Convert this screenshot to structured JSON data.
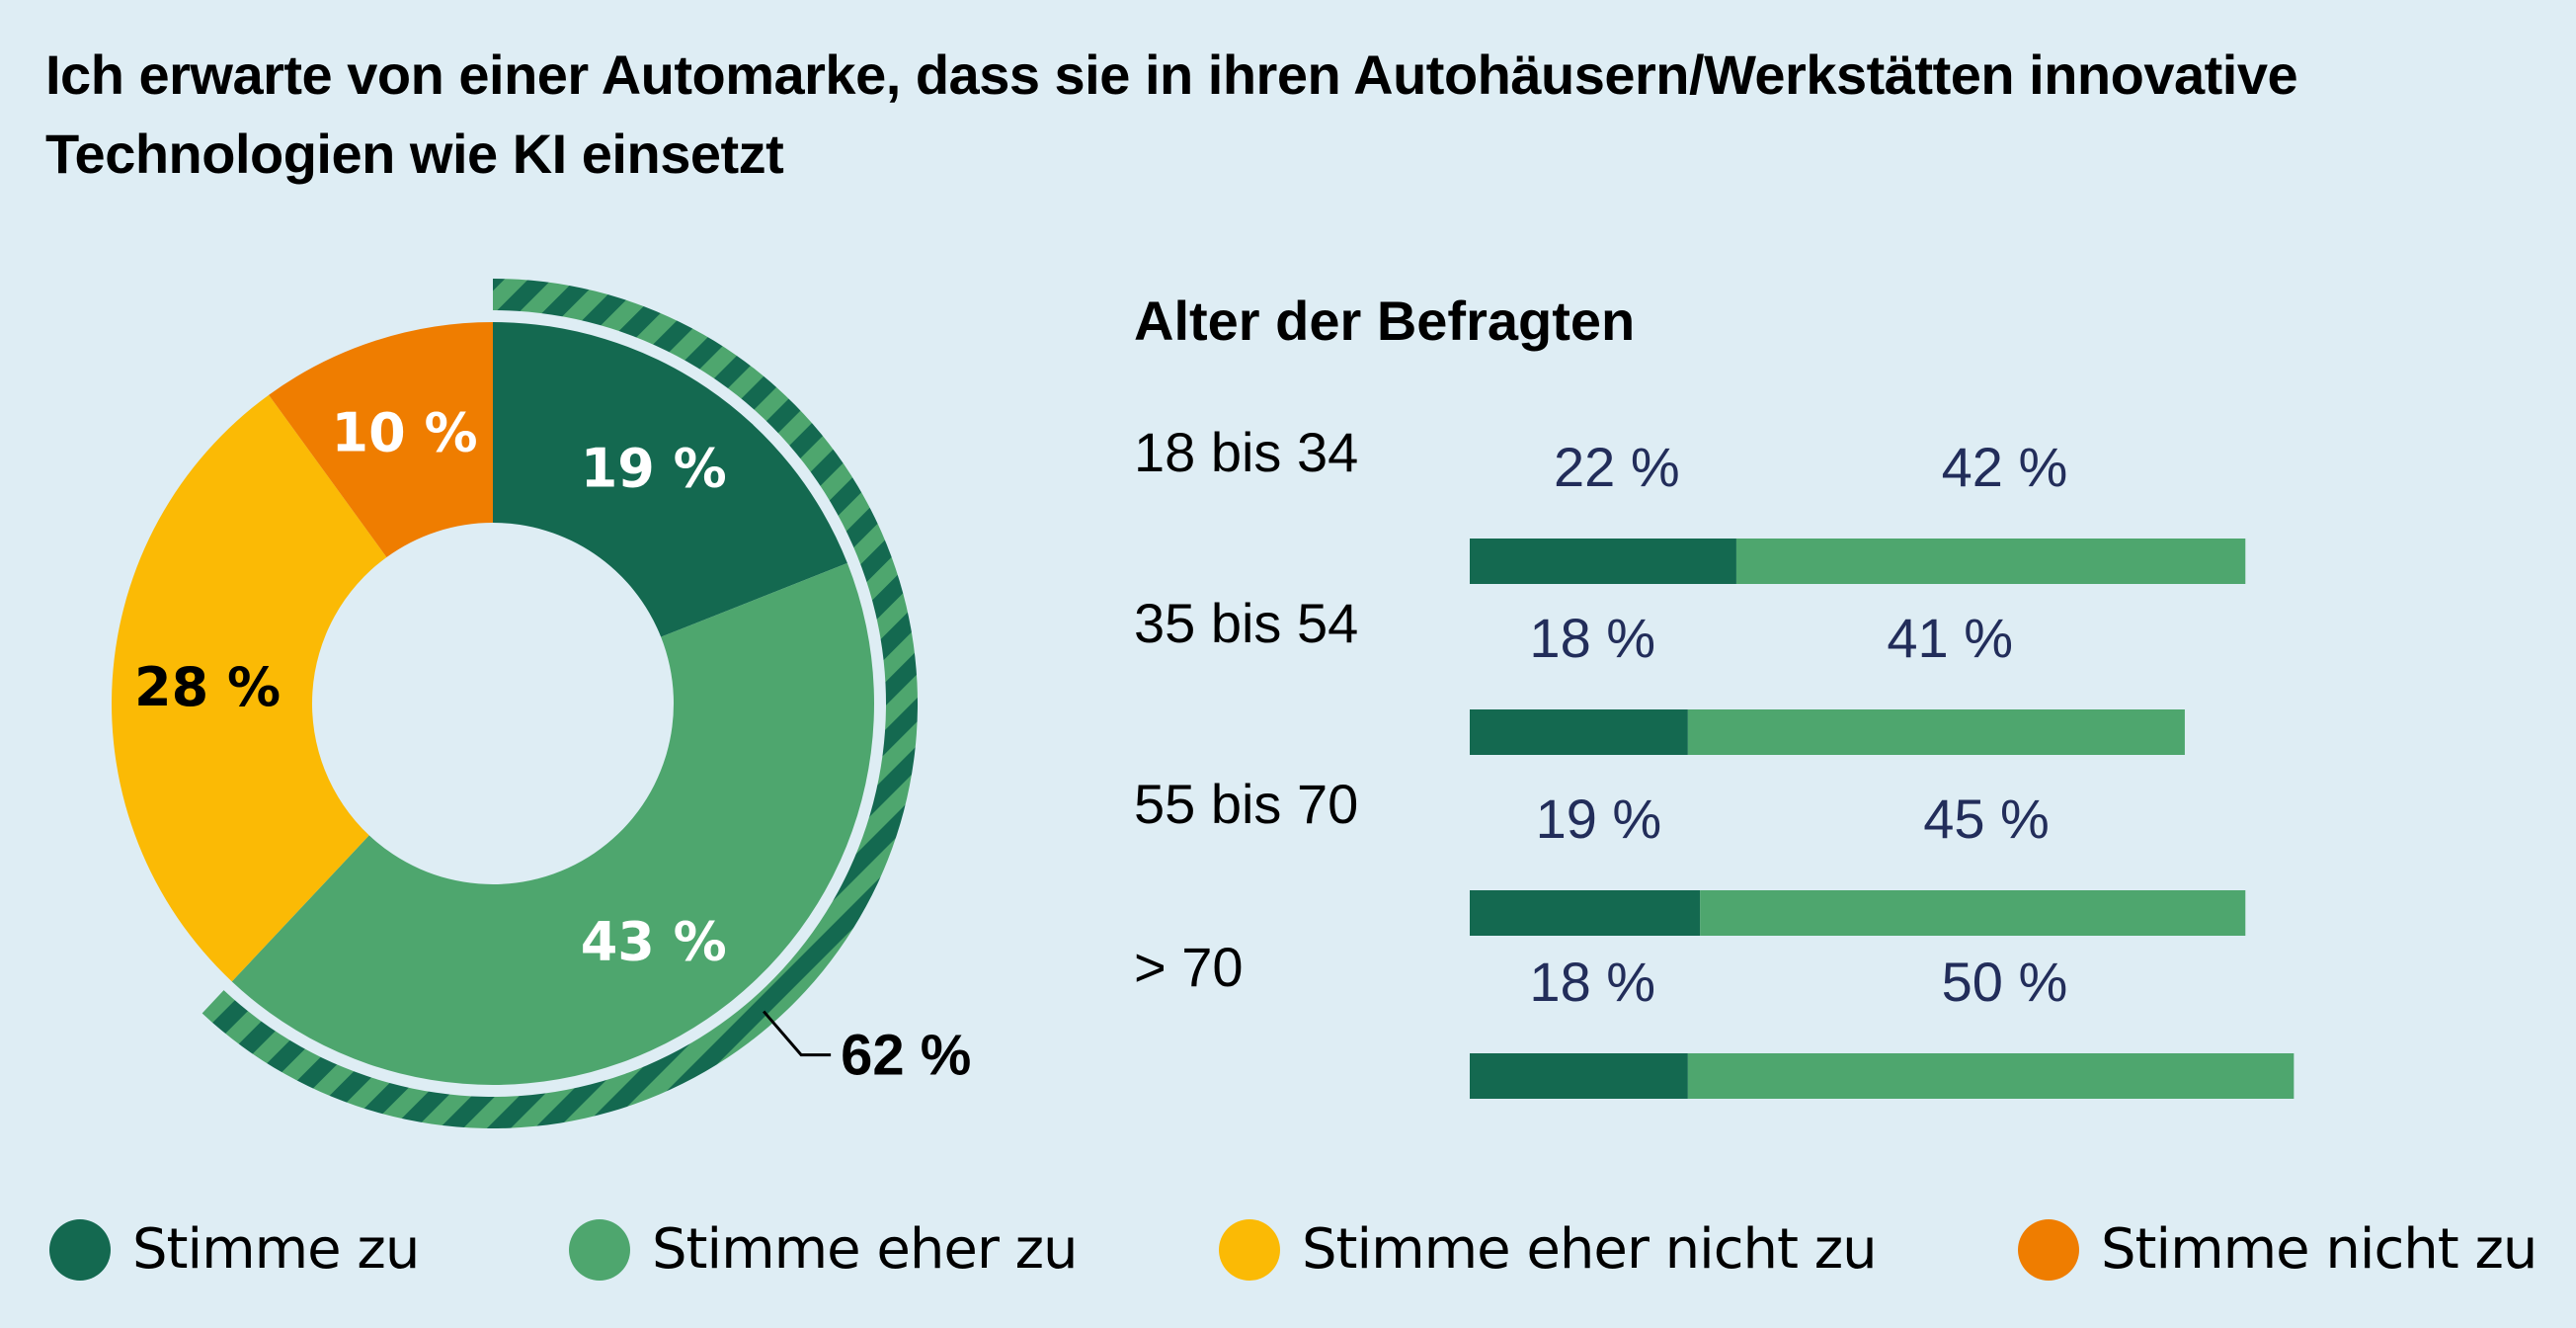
{
  "title": "Ich erwarte von einer Automarke, dass sie in ihren Autohäusern/Werkstätten innovative Technologien wie KI einsetzt",
  "colors": {
    "stimme_zu": "#146950",
    "stimme_eher_zu": "#4ea66e",
    "stimme_eher_nicht_zu": "#fbba05",
    "stimme_nicht_zu": "#ef7d00",
    "background": "#deedf4",
    "value_text": "#222d5a"
  },
  "chart_data": [
    {
      "type": "pie",
      "variant": "donut",
      "title": "",
      "categories": [
        "Stimme zu",
        "Stimme eher zu",
        "Stimme eher nicht zu",
        "Stimme nicht zu"
      ],
      "values": [
        19,
        43,
        28,
        10
      ],
      "labels": [
        "19 %",
        "43 %",
        "28 %",
        "10 %"
      ],
      "start_angle_deg": 0,
      "direction": "clockwise",
      "annotation": {
        "text": "62 %",
        "value": 62,
        "description": "combined Stimme zu + Stimme eher zu (striped outer arc)"
      }
    },
    {
      "type": "bar",
      "orientation": "horizontal",
      "stacked": true,
      "title": "Alter der Befragten",
      "categories": [
        "18 bis 34",
        "35 bis 54",
        "55 bis 70",
        "> 70"
      ],
      "series": [
        {
          "name": "Stimme zu",
          "values": [
            22,
            18,
            19,
            18
          ],
          "labels": [
            "22 %",
            "18 %",
            "19 %",
            "18 %"
          ]
        },
        {
          "name": "Stimme eher zu",
          "values": [
            42,
            41,
            45,
            50
          ],
          "labels": [
            "42 %",
            "41 %",
            "45 %",
            "50 %"
          ]
        }
      ],
      "xlim": [
        0,
        100
      ],
      "grid": false
    }
  ],
  "legend": {
    "placement": "bottom",
    "items": [
      {
        "label": "Stimme zu",
        "color": "#146950"
      },
      {
        "label": "Stimme eher zu",
        "color": "#4ea66e"
      },
      {
        "label": "Stimme eher nicht zu",
        "color": "#fbba05"
      },
      {
        "label": "Stimme nicht zu",
        "color": "#ef7d00"
      }
    ]
  }
}
